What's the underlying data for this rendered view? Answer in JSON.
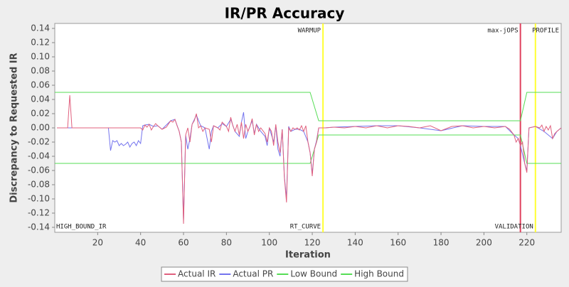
{
  "chart_data": {
    "type": "line",
    "title": "IR/PR Accuracy",
    "x_label": "Iteration",
    "y_label": "Discrepancy to Requested IR",
    "xlim": [
      0,
      236
    ],
    "xticks": [
      20,
      40,
      60,
      80,
      100,
      120,
      140,
      160,
      180,
      200,
      220
    ],
    "ylim": [
      -0.147,
      0.147
    ],
    "yticks": [
      {
        "value": -0.14,
        "label": "-0.14"
      },
      {
        "value": -0.12,
        "label": "-0.12"
      },
      {
        "value": -0.1,
        "label": "-0.10"
      },
      {
        "value": -0.08,
        "label": "-0.08"
      },
      {
        "value": -0.06,
        "label": "-0.06"
      },
      {
        "value": -0.04,
        "label": "-0.04"
      },
      {
        "value": -0.02,
        "label": "-0.02"
      },
      {
        "value": 0,
        "label": "0.00"
      },
      {
        "value": 0.02,
        "label": "0.02"
      },
      {
        "value": 0.04,
        "label": "0.04"
      },
      {
        "value": 0.06,
        "label": "0.06"
      },
      {
        "value": 0.08,
        "label": "0.08"
      },
      {
        "value": 0.1,
        "label": "0.10"
      },
      {
        "value": 0.12,
        "label": "0.12"
      },
      {
        "value": 0.14,
        "label": "0.14"
      }
    ],
    "grid": false,
    "legend": "bottom",
    "markers": [
      {
        "x": 0,
        "bottom": "HIGH_BOUND_IR"
      },
      {
        "x": 125,
        "color": "#ffff33",
        "top": "WARMUP",
        "bottom": "RT_CURVE"
      },
      {
        "x": 217,
        "color": "#e0405e",
        "top": "max-jOPS"
      },
      {
        "x": 224,
        "color": "#ffff33",
        "bottom": "VALIDATION"
      },
      {
        "x": 236,
        "top": "PROFILE"
      }
    ],
    "series": [
      {
        "name": "Actual IR",
        "color": "#e0607e",
        "x": [
          1,
          6,
          7,
          8,
          40,
          41,
          42,
          43,
          44,
          45,
          46,
          47,
          48,
          50,
          52,
          54,
          55,
          56,
          57,
          58,
          59,
          60,
          61,
          62,
          63,
          64,
          65,
          66,
          67,
          68,
          69,
          70,
          72,
          73,
          74,
          76,
          77,
          78,
          80,
          81,
          82,
          83,
          84,
          85,
          86,
          87,
          88,
          89,
          90,
          91,
          92,
          93,
          94,
          95,
          96,
          98,
          99,
          100,
          101,
          102,
          103,
          104,
          105,
          106,
          107,
          108,
          109,
          110,
          111,
          112,
          113,
          114,
          115,
          116,
          117,
          118,
          119,
          120,
          121,
          122,
          123,
          126,
          130,
          135,
          140,
          145,
          150,
          155,
          160,
          165,
          170,
          175,
          180,
          185,
          190,
          195,
          200,
          205,
          210,
          212,
          214,
          215,
          216,
          217,
          218,
          219,
          220,
          221,
          224,
          226,
          227,
          228,
          229,
          230,
          231,
          232,
          233,
          234,
          236
        ],
        "values": [
          0,
          0,
          0.046,
          0,
          0,
          -0.003,
          0.004,
          0.001,
          0.005,
          -0.003,
          0.002,
          0.006,
          0.003,
          -0.002,
          0.001,
          0.01,
          0.008,
          0.012,
          0.003,
          -0.005,
          -0.02,
          -0.135,
          -0.01,
          0,
          -0.02,
          0.005,
          0.01,
          0.02,
          0,
          0.003,
          -0.005,
          0,
          -0.002,
          -0.02,
          0.003,
          0,
          -0.003,
          0.008,
          0.002,
          -0.005,
          0.015,
          0.003,
          -0.005,
          0.005,
          -0.01,
          0.008,
          -0.015,
          0.005,
          -0.005,
          0.002,
          0.013,
          -0.01,
          0.005,
          -0.005,
          0,
          -0.008,
          -0.02,
          0,
          -0.005,
          -0.025,
          0.005,
          -0.02,
          -0.035,
          -0.002,
          -0.07,
          -0.105,
          0,
          -0.005,
          0,
          -0.002,
          0,
          -0.003,
          0.003,
          -0.005,
          0.003,
          -0.02,
          -0.035,
          -0.068,
          -0.03,
          -0.02,
          0,
          0,
          0.001,
          0,
          0.002,
          0,
          0.003,
          0,
          0.003,
          0.002,
          0,
          0.003,
          -0.004,
          0.002,
          0.003,
          0,
          0.002,
          0,
          0.002,
          -0.002,
          -0.01,
          -0.02,
          -0.015,
          -0.025,
          -0.02,
          -0.05,
          -0.063,
          0,
          0.002,
          0,
          0.004,
          -0.005,
          0.002,
          -0.003,
          0.003,
          -0.015,
          -0.008,
          -0.005,
          0
        ]
      },
      {
        "name": "Actual PR",
        "color": "#7474ee",
        "x": [
          1,
          25,
          26,
          27,
          28,
          29,
          30,
          31,
          32,
          33,
          34,
          35,
          36,
          37,
          38,
          39,
          40,
          41,
          42,
          44,
          46,
          48,
          50,
          54,
          56,
          58,
          59,
          60,
          61,
          62,
          63,
          64,
          66,
          68,
          70,
          72,
          73,
          74,
          76,
          78,
          80,
          82,
          84,
          86,
          87,
          88,
          89,
          90,
          92,
          93,
          94,
          96,
          98,
          99,
          100,
          102,
          103,
          104,
          105,
          106,
          107,
          108,
          109,
          110,
          112,
          114,
          116,
          118,
          119,
          120,
          121,
          122,
          123,
          126,
          130,
          140,
          150,
          160,
          170,
          180,
          190,
          200,
          210,
          214,
          216,
          217,
          219,
          220,
          221,
          224,
          228,
          232,
          234,
          236
        ],
        "values": [
          0,
          0,
          -0.032,
          -0.018,
          -0.02,
          -0.018,
          -0.025,
          -0.022,
          -0.025,
          -0.023,
          -0.02,
          -0.027,
          -0.022,
          -0.02,
          -0.025,
          -0.018,
          -0.022,
          0.003,
          0.004,
          0.005,
          0.002,
          0.003,
          -0.002,
          0.01,
          0.012,
          -0.005,
          -0.02,
          -0.13,
          -0.01,
          -0.03,
          -0.015,
          0.005,
          0.018,
          0.003,
          0,
          -0.03,
          -0.005,
          0.003,
          0,
          0.006,
          0.002,
          0.012,
          -0.005,
          -0.012,
          0.008,
          0.022,
          -0.015,
          -0.005,
          0.01,
          -0.008,
          0.005,
          -0.005,
          -0.012,
          -0.025,
          0,
          -0.02,
          0.003,
          -0.03,
          -0.04,
          -0.002,
          -0.068,
          -0.1,
          0.002,
          -0.005,
          -0.002,
          -0.002,
          -0.005,
          -0.02,
          -0.035,
          -0.065,
          -0.03,
          -0.018,
          0,
          0,
          0.001,
          0.002,
          0.003,
          0.003,
          0,
          -0.004,
          0.003,
          0.002,
          0.002,
          -0.01,
          -0.015,
          -0.025,
          -0.05,
          -0.06,
          0,
          0.002,
          -0.005,
          -0.015,
          -0.005,
          0
        ]
      },
      {
        "name": "Low Bound",
        "color": "#55dd55",
        "x": [
          0,
          119,
          123,
          217,
          220,
          236
        ],
        "values": [
          -0.05,
          -0.05,
          -0.01,
          -0.01,
          -0.05,
          -0.05
        ]
      },
      {
        "name": "High Bound",
        "color": "#55dd55",
        "x": [
          0,
          119,
          123,
          217,
          220,
          236
        ],
        "values": [
          0.05,
          0.05,
          0.01,
          0.01,
          0.05,
          0.05
        ]
      }
    ]
  }
}
